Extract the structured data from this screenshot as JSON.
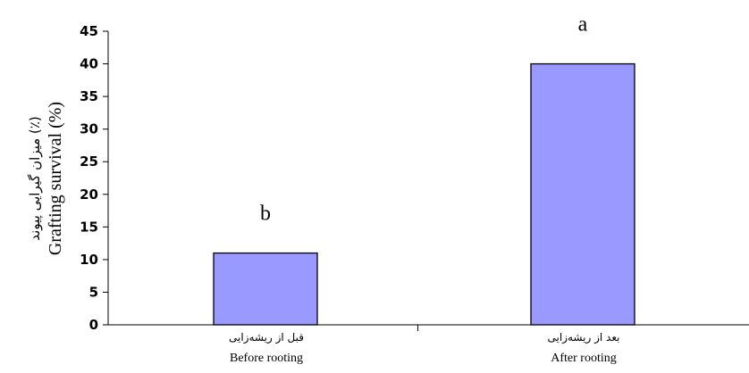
{
  "chart_data": {
    "type": "bar",
    "categories": [
      {
        "fa": "قبل از ریشه‌زایی",
        "en": "Before rooting"
      },
      {
        "fa": "بعد از ریشه‌زایی",
        "en": "After rooting"
      }
    ],
    "values": [
      11,
      40
    ],
    "letters": [
      "b",
      "a"
    ],
    "ylabel_fa": "میزان گیرایی پیوند (٪)",
    "ylabel_en": "Grafting survival (%)",
    "ylim": [
      0,
      45
    ],
    "yticks": [
      0,
      5,
      10,
      15,
      20,
      25,
      30,
      35,
      40,
      45
    ],
    "grid": false,
    "bar_color": "#9999ff",
    "bar_stroke": "#000000"
  }
}
